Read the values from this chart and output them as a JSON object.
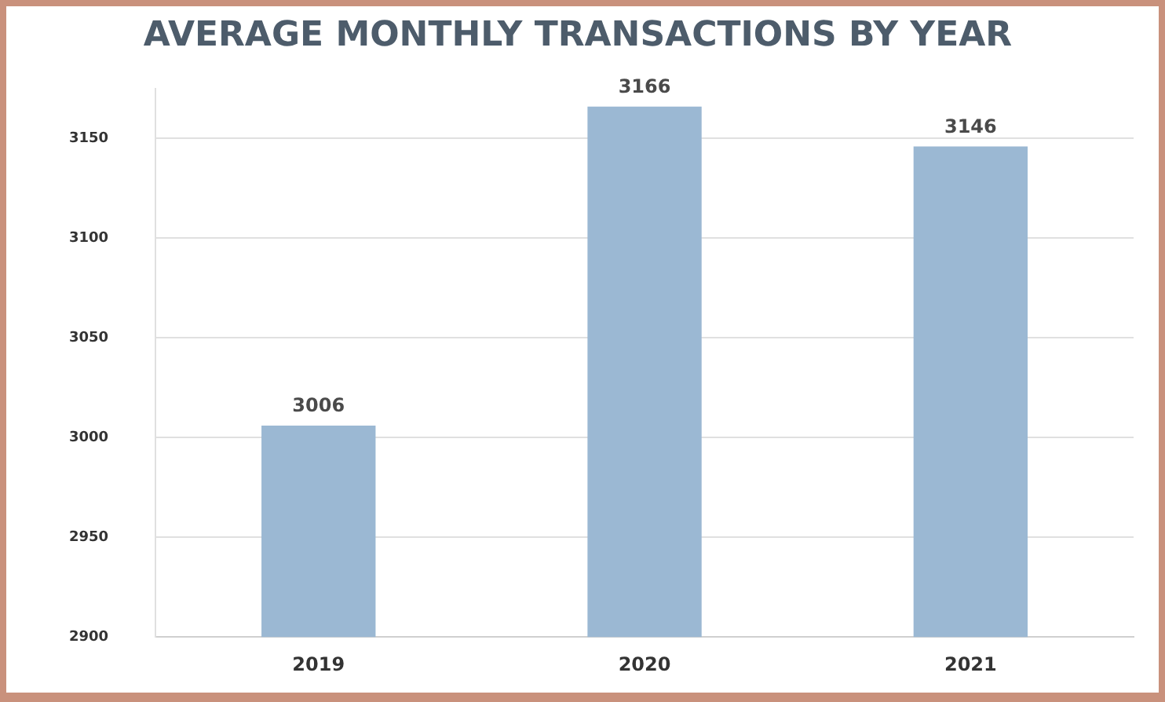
{
  "chart_data": {
    "type": "bar",
    "title": "AVERAGE MONTHLY TRANSACTIONS BY YEAR",
    "categories": [
      "2019",
      "2020",
      "2021"
    ],
    "values": [
      3006,
      3166,
      3146
    ],
    "color": "#9bb8d3",
    "ylim": [
      2900,
      3175
    ],
    "yticks": [
      2900,
      2950,
      3000,
      3050,
      3100,
      3150
    ],
    "grid": "y",
    "data_labels": true
  }
}
